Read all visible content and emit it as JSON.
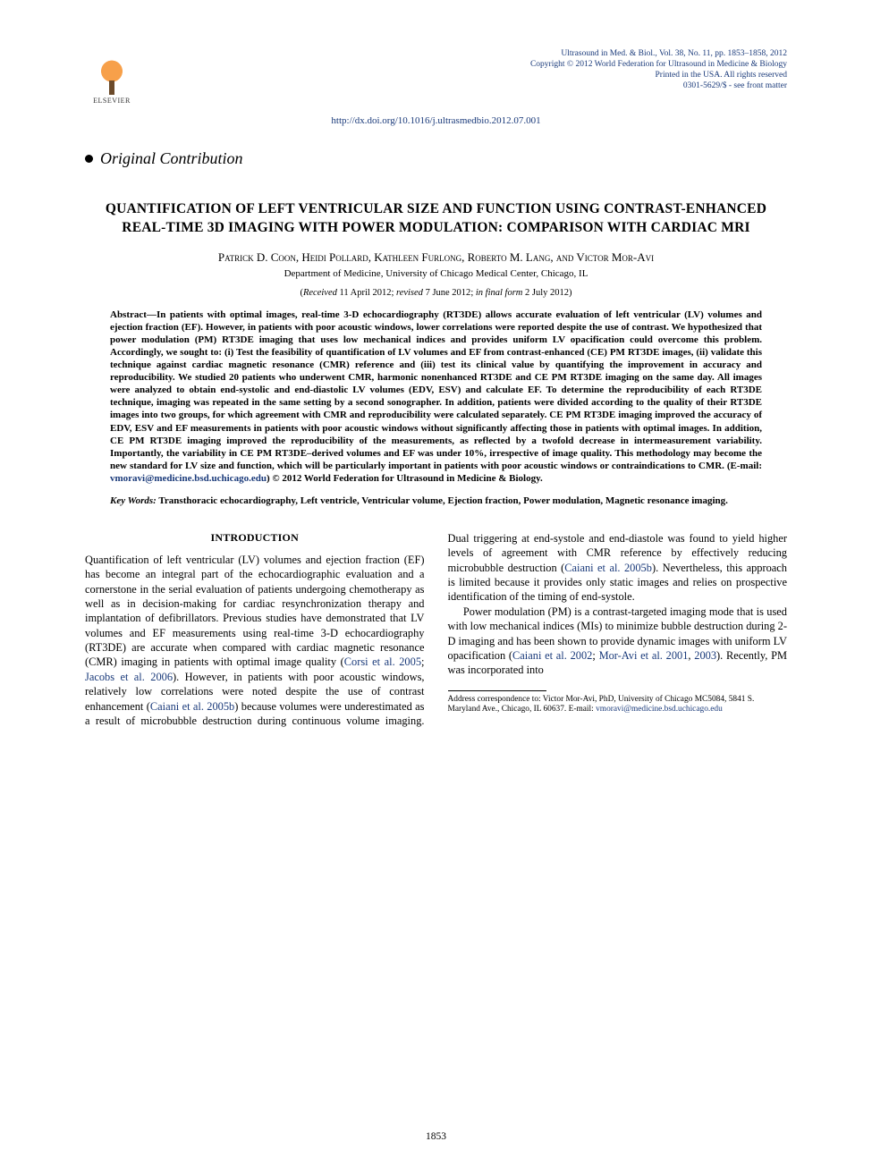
{
  "header": {
    "publisher_label": "ELSEVIER",
    "meta_line1": "Ultrasound in Med. & Biol., Vol. 38, No. 11, pp. 1853–1858, 2012",
    "meta_line2": "Copyright © 2012 World Federation for Ultrasound in Medicine & Biology",
    "meta_line3": "Printed in the USA. All rights reserved",
    "meta_line4": "0301-5629/$ - see front matter",
    "doi_url": "http://dx.doi.org/10.1016/j.ultrasmedbio.2012.07.001",
    "meta_color": "#1a3a7a"
  },
  "section_marker": "Original Contribution",
  "title": "QUANTIFICATION OF LEFT VENTRICULAR SIZE AND FUNCTION USING CONTRAST-ENHANCED REAL-TIME 3D IMAGING WITH POWER MODULATION: COMPARISON WITH CARDIAC MRI",
  "authors": "Patrick D. Coon, Heidi Pollard, Kathleen Furlong, Roberto M. Lang, and Victor Mor-Avi",
  "affiliation": "Department of Medicine, University of Chicago Medical Center, Chicago, IL",
  "dates": {
    "received_label": "Received",
    "received": "11 April 2012",
    "revised_label": "revised",
    "revised": "7 June 2012",
    "final_label": "in final form",
    "final": "2 July 2012"
  },
  "abstract": {
    "label": "Abstract—",
    "body": "In patients with optimal images, real-time 3-D echocardiography (RT3DE) allows accurate evaluation of left ventricular (LV) volumes and ejection fraction (EF). However, in patients with poor acoustic windows, lower correlations were reported despite the use of contrast. We hypothesized that power modulation (PM) RT3DE imaging that uses low mechanical indices and provides uniform LV opacification could overcome this problem. Accordingly, we sought to: (i) Test the feasibility of quantification of LV volumes and EF from contrast-enhanced (CE) PM RT3DE images, (ii) validate this technique against cardiac magnetic resonance (CMR) reference and (iii) test its clinical value by quantifying the improvement in accuracy and reproducibility. We studied 20 patients who underwent CMR, harmonic nonenhanced RT3DE and CE PM RT3DE imaging on the same day. All images were analyzed to obtain end-systolic and end-diastolic LV volumes (EDV, ESV) and calculate EF. To determine the reproducibility of each RT3DE technique, imaging was repeated in the same setting by a second sonographer. In addition, patients were divided according to the quality of their RT3DE images into two groups, for which agreement with CMR and reproducibility were calculated separately. CE PM RT3DE imaging improved the accuracy of EDV, ESV and EF measurements in patients with poor acoustic windows without significantly affecting those in patients with optimal images. In addition, CE PM RT3DE imaging improved the reproducibility of the measurements, as reflected by a twofold decrease in intermeasurement variability. Importantly, the variability in CE PM RT3DE–derived volumes and EF was under 10%, irrespective of image quality. This methodology may become the new standard for LV size and function, which will be particularly important in patients with poor acoustic windows or contraindications to CMR.   (E-mail: ",
    "email": "vmoravi@medicine.bsd.uchicago.edu",
    "tail": ")    © 2012 World Federation for Ultrasound in Medicine & Biology."
  },
  "keywords": {
    "label": "Key Words:",
    "list": "Transthoracic echocardiography, Left ventricle, Ventricular volume, Ejection fraction, Power modulation, Magnetic resonance imaging."
  },
  "body": {
    "intro_head": "INTRODUCTION",
    "p1a": "Quantification of left ventricular (LV) volumes and ejection fraction (EF) has become an integral part of the echocardiographic evaluation and a cornerstone in the serial evaluation of patients undergoing chemotherapy as well as in decision-making for cardiac resynchronization therapy and implantation of defibrillators. Previous studies have demonstrated that LV volumes and EF measurements using real-time 3-D echocardiography (RT3DE) are accurate when compared with cardiac magnetic resonance (CMR) imaging in patients with optimal image quality (",
    "c1": "Corsi et al. 2005",
    "p1b": "; ",
    "c2": "Jacobs et al. 2006",
    "p1c": "). However, in patients with poor acoustic windows, relatively low correlations were noted despite the use of contrast enhancement (",
    "c3": "Caiani et al. 2005b",
    "p1d": ") because volumes were underestimated as a result of microbubble destruction during continuous volume imaging. Dual triggering at end-systole and end-diastole was found to yield higher levels of agreement with CMR reference by effectively reducing microbubble destruction (",
    "c4": "Caiani et al. 2005b",
    "p1e": "). Nevertheless, this approach is limited because it provides only static images and relies on prospective identification of the timing of end-systole.",
    "p2a": "Power modulation (PM) is a contrast-targeted imaging mode that is used with low mechanical indices (MIs) to minimize bubble destruction during 2-D imaging and has been shown to provide dynamic images with uniform LV opacification (",
    "c5": "Caiani et al. 2002",
    "p2b": "; ",
    "c6": "Mor-Avi et al. 2001",
    "p2c": ", ",
    "c7": "2003",
    "p2d": "). Recently, PM was incorporated into"
  },
  "footnote": {
    "text": "Address correspondence to: Victor Mor-Avi, PhD, University of Chicago MC5084, 5841 S. Maryland Ave., Chicago, IL 60637. E-mail: ",
    "email": "vmoravi@medicine.bsd.uchicago.edu"
  },
  "pagenum": "1853",
  "colors": {
    "link": "#1a3a7a",
    "text": "#000000",
    "background": "#ffffff"
  },
  "fonts": {
    "body_family": "Times New Roman",
    "body_size_pt": 12.4,
    "abstract_size_pt": 11,
    "title_size_pt": 15.5
  }
}
